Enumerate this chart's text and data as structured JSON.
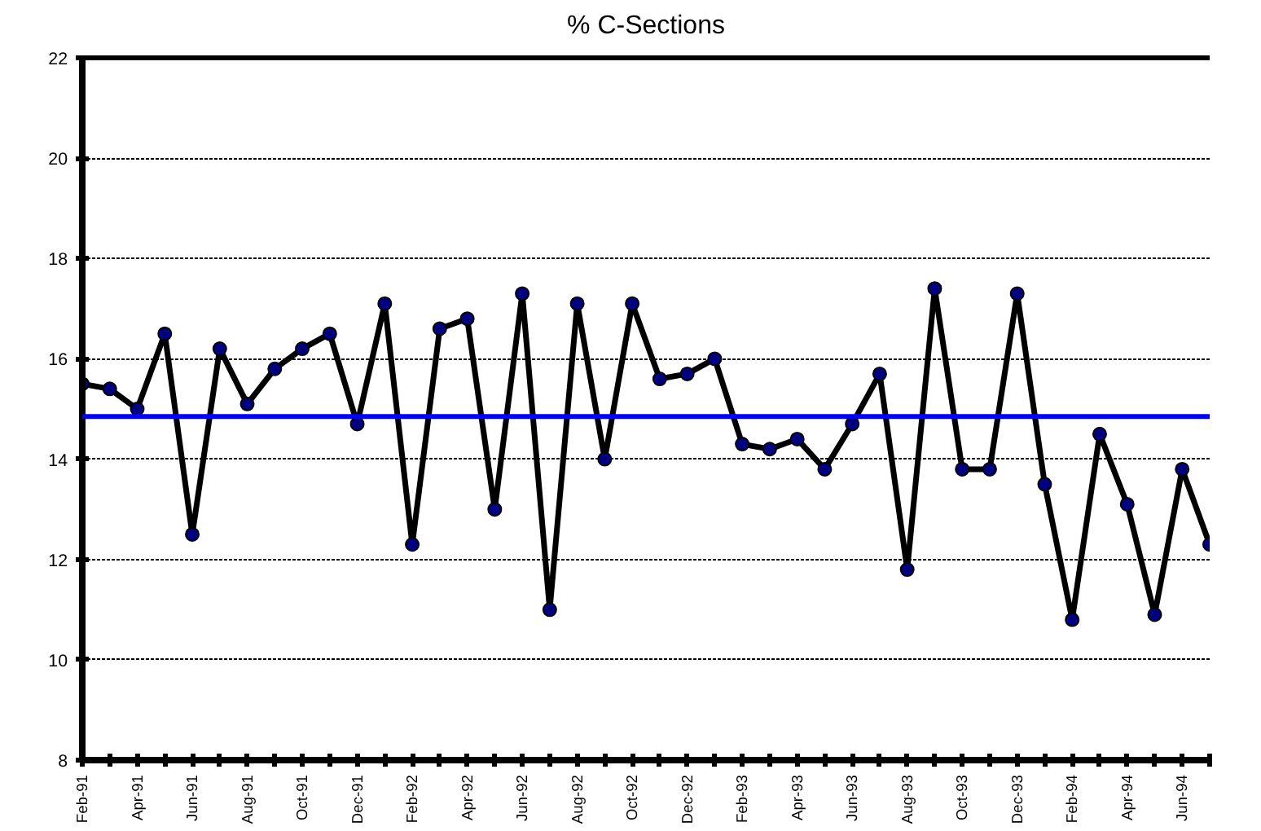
{
  "chart_data": {
    "type": "line",
    "title": "% C-Sections",
    "categories": [
      "Feb-91",
      null,
      "Apr-91",
      null,
      "Jun-91",
      null,
      "Aug-91",
      null,
      "Oct-91",
      null,
      "Dec-91",
      null,
      "Feb-92",
      null,
      "Apr-92",
      null,
      "Jun-92",
      null,
      "Aug-92",
      null,
      "Oct-92",
      null,
      "Dec-92",
      null,
      "Feb-93",
      null,
      "Apr-93",
      null,
      "Jun-93",
      null,
      "Aug-93",
      null,
      "Oct-93",
      null,
      "Dec-93",
      null,
      "Feb-94",
      null,
      "Apr-94",
      null,
      "Jun-94",
      null
    ],
    "series": [
      {
        "color": "#000000",
        "values": [
          15.5,
          15.4,
          15.0,
          16.5,
          12.5,
          16.2,
          15.1,
          15.8,
          16.2,
          16.5,
          14.7,
          17.1,
          12.3,
          16.6,
          16.8,
          13.0,
          17.3,
          11.0,
          17.1,
          14.0,
          17.1,
          15.6,
          15.7,
          16.0,
          14.3,
          14.2,
          14.4,
          13.8,
          14.7,
          15.7,
          11.8,
          17.4,
          13.8,
          13.8,
          17.3,
          13.5,
          10.8,
          14.5,
          13.1,
          10.9,
          13.8,
          12.3
        ]
      }
    ],
    "ylim": [
      8,
      22
    ],
    "yticks": [
      8,
      10,
      12,
      14,
      16,
      18,
      20,
      22
    ],
    "ref_lines": [
      {
        "axis": "y",
        "value": 14.85,
        "color": "#0000ff"
      }
    ],
    "grid": "y",
    "marker": "circle",
    "line_style": "solid"
  }
}
